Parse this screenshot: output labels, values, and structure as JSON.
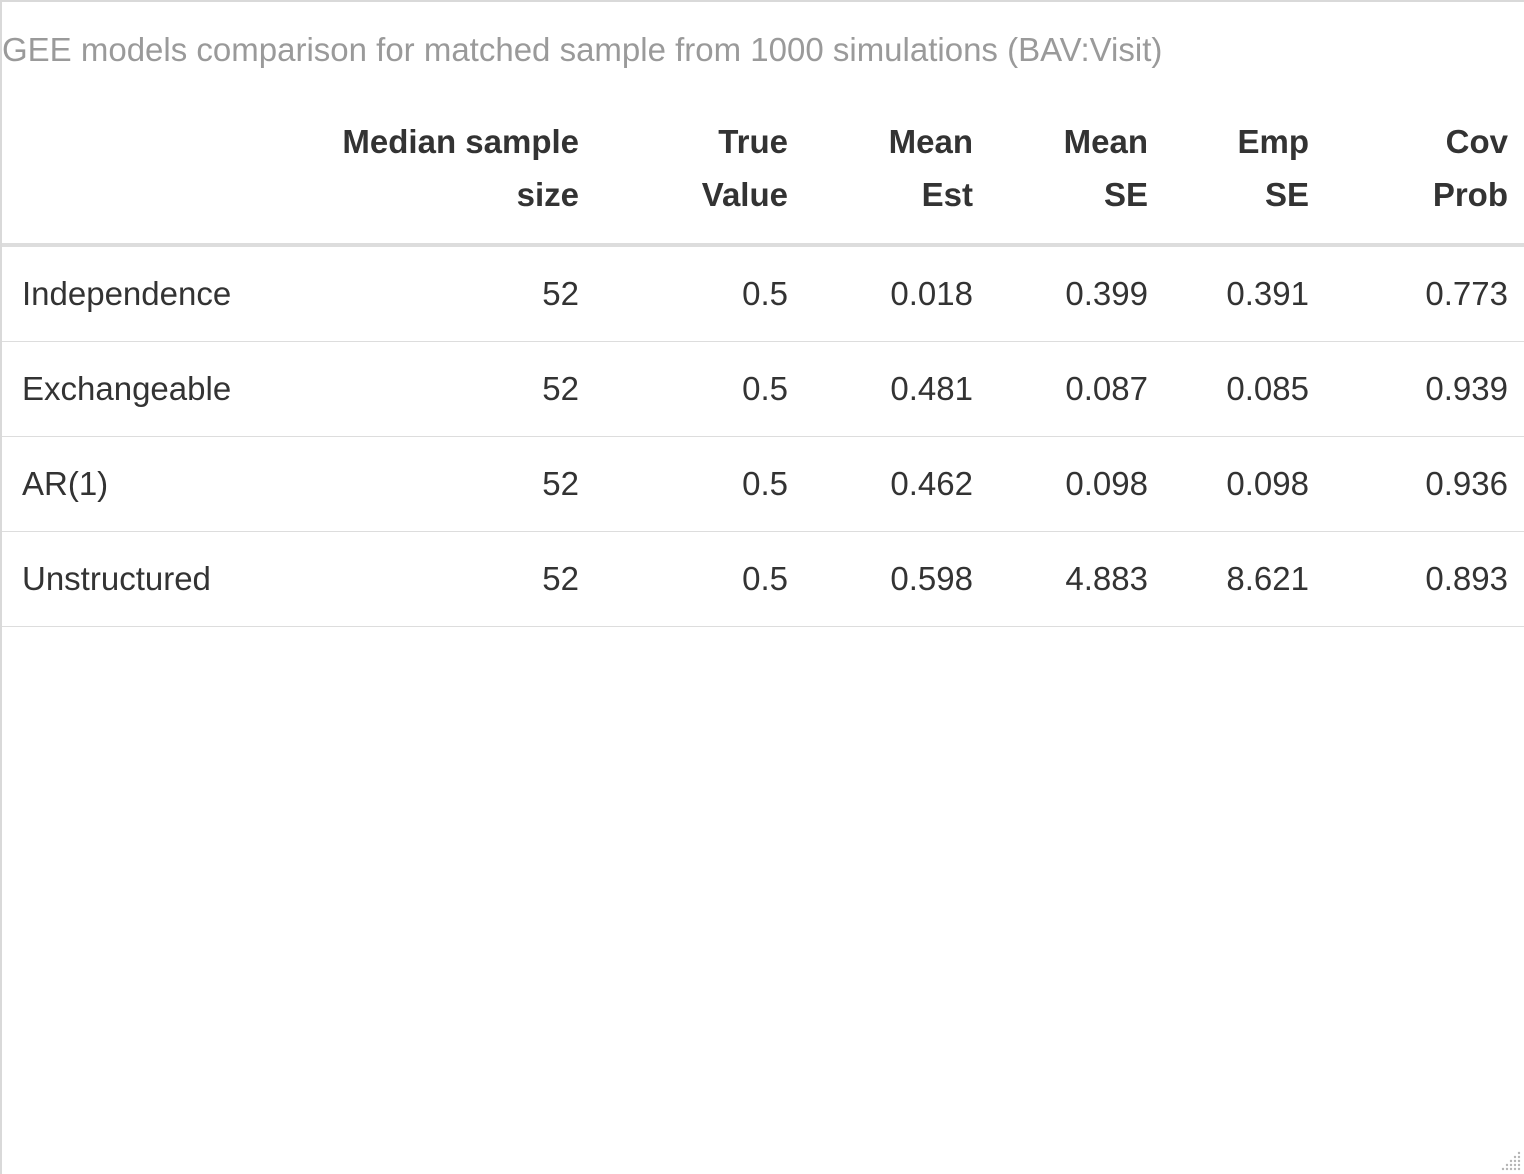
{
  "caption": "GEE models comparison for matched sample from 1000 simulations (BAV:Visit)",
  "columns": [
    {
      "line1": "",
      "line2": ""
    },
    {
      "line1": "Median sample",
      "line2": "size"
    },
    {
      "line1": "True",
      "line2": "Value"
    },
    {
      "line1": "Mean",
      "line2": "Est"
    },
    {
      "line1": "Mean",
      "line2": "SE"
    },
    {
      "line1": "Emp",
      "line2": "SE"
    },
    {
      "line1": "Cov",
      "line2": "Prob"
    }
  ],
  "rows": [
    {
      "name": "Independence",
      "median_n": "52",
      "true_value": "0.5",
      "mean_est": "0.018",
      "mean_se": "0.399",
      "emp_se": "0.391",
      "cov_prob": "0.773"
    },
    {
      "name": "Exchangeable",
      "median_n": "52",
      "true_value": "0.5",
      "mean_est": "0.481",
      "mean_se": "0.087",
      "emp_se": "0.085",
      "cov_prob": "0.939"
    },
    {
      "name": "AR(1)",
      "median_n": "52",
      "true_value": "0.5",
      "mean_est": "0.462",
      "mean_se": "0.098",
      "emp_se": "0.098",
      "cov_prob": "0.936"
    },
    {
      "name": "Unstructured",
      "median_n": "52",
      "true_value": "0.5",
      "mean_est": "0.598",
      "mean_se": "4.883",
      "emp_se": "8.621",
      "cov_prob": "0.893"
    }
  ],
  "icons": {
    "resize_grip": "resize-grip-icon"
  },
  "colors": {
    "caption": "#9a9a9a",
    "text": "#333333",
    "rule": "#dddddd"
  }
}
